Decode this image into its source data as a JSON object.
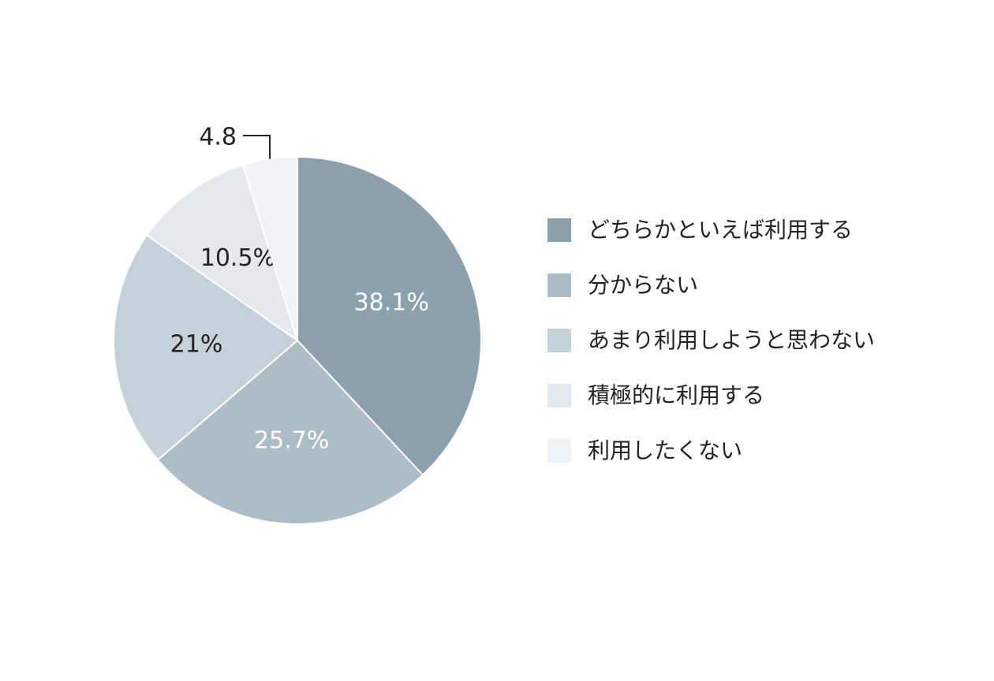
{
  "chart_data": {
    "type": "pie",
    "categories": [
      "どちらかといえば利用する",
      "分からない",
      "あまり利用しようと思わない",
      "積極的に利用する",
      "利用したくない"
    ],
    "values": [
      38.1,
      25.7,
      21,
      10.5,
      4.8
    ],
    "value_labels": [
      "38.1%",
      "25.7%",
      "21%",
      "10.5%",
      "4.8"
    ],
    "colors": [
      "#8ba1ae",
      "#adbdc6",
      "#c5d1d8",
      "#e3e9ec",
      "#eff3f5"
    ],
    "legend": "right"
  }
}
